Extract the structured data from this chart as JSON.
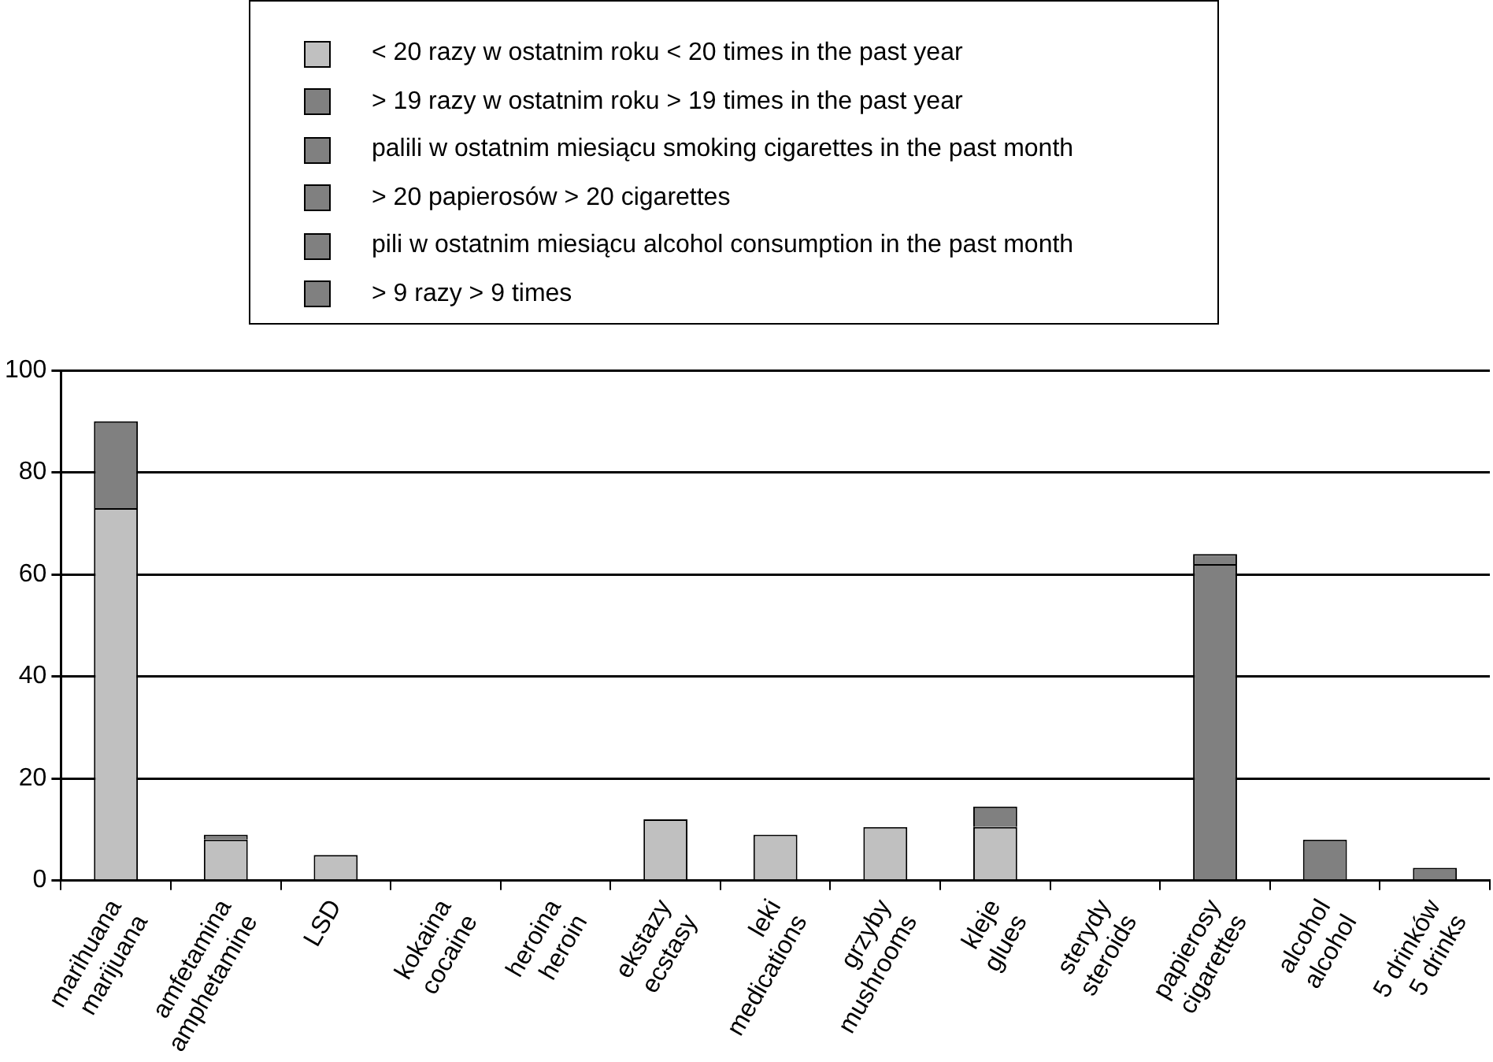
{
  "chart_data": {
    "type": "bar",
    "stacked": true,
    "grid": "y",
    "legend": "top",
    "categories": [
      "marihuana\nmarijuana",
      "amfetamina\namphetamine",
      "LSD",
      "kokaina\ncocaine",
      "heroina\nheroin",
      "ekstazy\necstasy",
      "leki\nmedications",
      "grzyby\nmushrooms",
      "kleje\nglues",
      "sterydy\nsteroids",
      "papierosy\ncigarettes",
      "alcohol\nalcohol",
      "5 drinków\n5 drinks"
    ],
    "ylim": [
      0,
      100
    ],
    "yticks": [
      0,
      20,
      40,
      60,
      80,
      100
    ],
    "series": [
      {
        "name": "< 20 razy w ostatnim roku < 20 times in the past year",
        "color": "#c0c0c0",
        "values": [
          73,
          8,
          5,
          null,
          null,
          12,
          9,
          10.5,
          10.5,
          null,
          null,
          null,
          null
        ]
      },
      {
        "name": "> 19 razy w ostatnim roku  > 19 times in the past year",
        "color": "#808080",
        "values": [
          17,
          1,
          null,
          null,
          null,
          null,
          null,
          null,
          4,
          null,
          null,
          null,
          null
        ]
      },
      {
        "name": "palili w ostatnim miesiącu  smoking cigarettes in the past month",
        "color": "#808080",
        "values": [
          null,
          null,
          null,
          null,
          null,
          null,
          null,
          null,
          null,
          null,
          62,
          null,
          null
        ]
      },
      {
        "name": "> 20 papierosów  > 20 cigarettes",
        "color": "#808080",
        "values": [
          null,
          null,
          null,
          null,
          null,
          null,
          null,
          null,
          null,
          null,
          2,
          null,
          null
        ]
      },
      {
        "name": "pili w ostatnim miesiącu  alcohol consumption in the past month",
        "color": "#808080",
        "values": [
          null,
          null,
          null,
          null,
          null,
          null,
          null,
          null,
          null,
          null,
          null,
          8,
          null
        ]
      },
      {
        "name": "> 9 razy  > 9 times",
        "color": "#808080",
        "values": [
          null,
          null,
          null,
          null,
          null,
          null,
          null,
          null,
          null,
          null,
          null,
          null,
          2.5
        ]
      }
    ]
  }
}
